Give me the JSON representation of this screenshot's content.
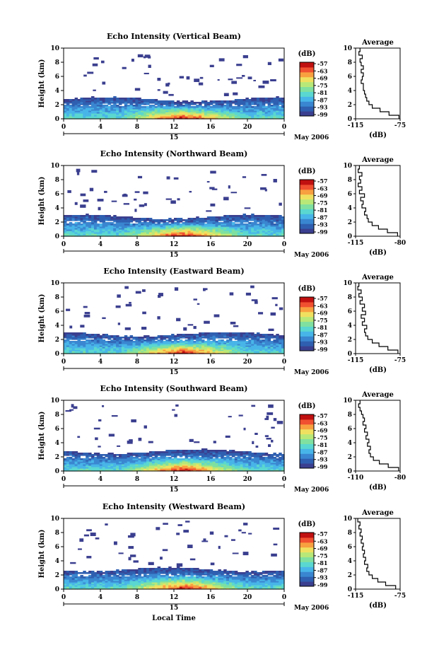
{
  "figure": {
    "xlabel": "Local Time",
    "date_label": "May 2006",
    "day_label": "15",
    "colorbar_label": "(dB)",
    "colorbar_ticks": [
      "-57",
      "-63",
      "-69",
      "-75",
      "-81",
      "-87",
      "-93",
      "-99"
    ],
    "colors": [
      "#3b3f8f",
      "#2f5fb0",
      "#3a86d0",
      "#48b5e8",
      "#5ad7d0",
      "#7fe0a0",
      "#b8e878",
      "#f0e060",
      "#f8a040",
      "#f05030",
      "#c01010"
    ]
  },
  "chart_data": [
    {
      "type": "heatmap",
      "title": "Echo Intensity (Vertical Beam)",
      "xlabel": "",
      "ylabel": "Height (km)",
      "xlim": [
        0,
        24
      ],
      "ylim": [
        0,
        10
      ],
      "x_ticks": [
        "0",
        "4",
        "8",
        "12",
        "16",
        "20",
        "0"
      ],
      "y_ticks": [
        "0",
        "2",
        "4",
        "6",
        "8",
        "10"
      ],
      "clim": [
        -99,
        -57
      ],
      "profile": {
        "title": "Average",
        "xlabel": "(dB)",
        "x_ticks": [
          "-115",
          "-75"
        ],
        "xlim": [
          -115,
          -75
        ],
        "y_ticks": [
          "0",
          "2",
          "4",
          "6",
          "8",
          "10"
        ],
        "heights": [
          0,
          0.5,
          1,
          1.5,
          2,
          2.5,
          3,
          3.5,
          4,
          4.5,
          5,
          5.5,
          6,
          6.5,
          7,
          7.5,
          8,
          8.5,
          9,
          9.5
        ],
        "values": [
          -76,
          -85,
          -93,
          -100,
          -103,
          -105,
          -106,
          -107,
          -108,
          -108,
          -110,
          -109,
          -108,
          -110,
          -108,
          -110,
          -111,
          -109,
          -112,
          -111
        ]
      }
    },
    {
      "type": "heatmap",
      "title": "Echo Intensity (Northward Beam)",
      "xlabel": "",
      "ylabel": "Height (km)",
      "xlim": [
        0,
        24
      ],
      "ylim": [
        0,
        10
      ],
      "x_ticks": [
        "0",
        "4",
        "8",
        "12",
        "16",
        "20",
        "0"
      ],
      "y_ticks": [
        "0",
        "2",
        "4",
        "6",
        "8",
        "10"
      ],
      "clim": [
        -99,
        -57
      ],
      "profile": {
        "title": "Average",
        "xlabel": "(dB)",
        "x_ticks": [
          "-115",
          "-80"
        ],
        "xlim": [
          -115,
          -80
        ],
        "y_ticks": [
          "0",
          "2",
          "4",
          "6",
          "8",
          "10"
        ],
        "heights": [
          0,
          0.5,
          1,
          1.5,
          2,
          2.5,
          3,
          3.5,
          4,
          4.5,
          5,
          5.5,
          6,
          6.5,
          7,
          7.5,
          8,
          8.5,
          9,
          9.5
        ],
        "values": [
          -82,
          -90,
          -97,
          -102,
          -105,
          -106,
          -108,
          -107,
          -110,
          -109,
          -111,
          -108,
          -112,
          -110,
          -113,
          -111,
          -112,
          -110,
          -113,
          -112
        ]
      }
    },
    {
      "type": "heatmap",
      "title": "Echo Intensity (Eastward Beam)",
      "xlabel": "",
      "ylabel": "Height (km)",
      "xlim": [
        0,
        24
      ],
      "ylim": [
        0,
        10
      ],
      "x_ticks": [
        "0",
        "4",
        "8",
        "12",
        "16",
        "20",
        "0"
      ],
      "y_ticks": [
        "0",
        "2",
        "4",
        "6",
        "8",
        "10"
      ],
      "clim": [
        -99,
        -57
      ],
      "profile": {
        "title": "Average",
        "xlabel": "(dB)",
        "x_ticks": [
          "-115",
          "-75"
        ],
        "xlim": [
          -115,
          -75
        ],
        "y_ticks": [
          "0",
          "2",
          "4",
          "6",
          "8",
          "10"
        ],
        "heights": [
          0,
          0.5,
          1,
          1.5,
          2,
          2.5,
          3,
          3.5,
          4,
          4.5,
          5,
          5.5,
          6,
          6.5,
          7,
          7.5,
          8,
          8.5,
          9,
          9.5
        ],
        "values": [
          -77,
          -86,
          -94,
          -100,
          -104,
          -106,
          -107,
          -105,
          -109,
          -107,
          -110,
          -106,
          -109,
          -107,
          -111,
          -109,
          -112,
          -110,
          -113,
          -112
        ]
      }
    },
    {
      "type": "heatmap",
      "title": "Echo Intensity (Southward Beam)",
      "xlabel": "",
      "ylabel": "Height (km)",
      "xlim": [
        0,
        24
      ],
      "ylim": [
        0,
        10
      ],
      "x_ticks": [
        "0",
        "4",
        "8",
        "12",
        "16",
        "20",
        "0"
      ],
      "y_ticks": [
        "0",
        "2",
        "4",
        "6",
        "8",
        "10"
      ],
      "clim": [
        -99,
        -57
      ],
      "profile": {
        "title": "Average",
        "xlabel": "(dB)",
        "x_ticks": [
          "-110",
          "-80"
        ],
        "xlim": [
          -110,
          -80
        ],
        "y_ticks": [
          "0",
          "2",
          "4",
          "6",
          "8",
          "10"
        ],
        "heights": [
          0,
          0.5,
          1,
          1.5,
          2,
          2.5,
          3,
          3.5,
          4,
          4.5,
          5,
          5.5,
          6,
          6.5,
          7,
          7.5,
          8,
          8.5,
          9,
          9.5
        ],
        "values": [
          -81,
          -88,
          -94,
          -98,
          -100,
          -101,
          -100,
          -102,
          -101,
          -103,
          -102,
          -104,
          -103,
          -105,
          -104,
          -105,
          -106,
          -107,
          -108,
          -107
        ]
      }
    },
    {
      "type": "heatmap",
      "title": "Echo Intensity (Westward Beam)",
      "xlabel": "",
      "ylabel": "Height (km)",
      "xlim": [
        0,
        24
      ],
      "ylim": [
        0,
        10
      ],
      "x_ticks": [
        "0",
        "4",
        "8",
        "12",
        "16",
        "20",
        "0"
      ],
      "y_ticks": [
        "0",
        "2",
        "4",
        "6",
        "8",
        "10"
      ],
      "clim": [
        -99,
        -57
      ],
      "profile": {
        "title": "Average",
        "xlabel": "(dB)",
        "x_ticks": [
          "-115",
          "-75"
        ],
        "xlim": [
          -115,
          -75
        ],
        "y_ticks": [
          "0",
          "2",
          "4",
          "6",
          "8",
          "10"
        ],
        "heights": [
          0,
          0.5,
          1,
          1.5,
          2,
          2.5,
          3,
          3.5,
          4,
          4.5,
          5,
          5.5,
          6,
          6.5,
          7,
          7.5,
          8,
          8.5,
          9,
          9.5
        ],
        "values": [
          -79,
          -88,
          -95,
          -100,
          -103,
          -105,
          -104,
          -107,
          -106,
          -108,
          -107,
          -109,
          -108,
          -110,
          -109,
          -111,
          -110,
          -112,
          -111,
          -113
        ]
      }
    }
  ]
}
